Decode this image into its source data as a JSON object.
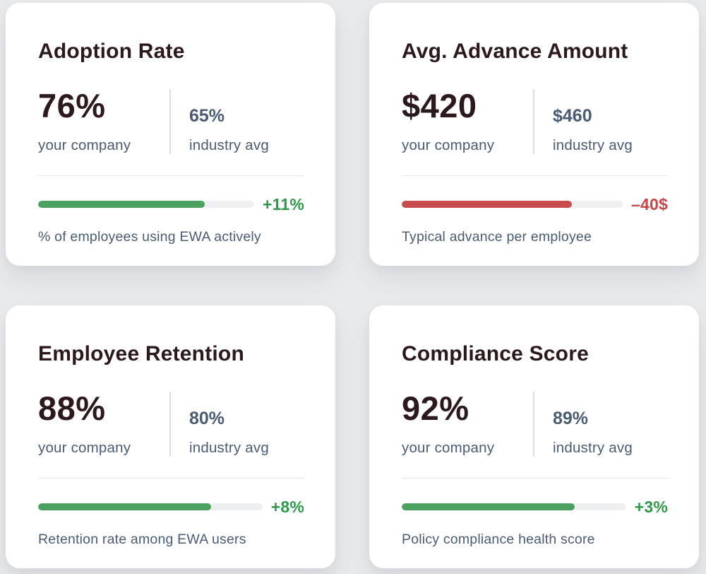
{
  "theme": {
    "page_bg": "#e9eaec",
    "card_bg": "#ffffff",
    "title_color": "#2b191c",
    "slate_color": "#4a5c74",
    "divider_color": "#d9dce2",
    "hrule_color": "#e5e7ea",
    "track_color": "#eff0f1",
    "positive_color": "#2e9a49",
    "positive_bar_color": "#4aa160",
    "negative_color": "#c84545",
    "negative_bar_color": "#c94b4b"
  },
  "cards": [
    {
      "title": "Adoption Rate",
      "company_value": "76%",
      "company_label": "your company",
      "industry_value": "65%",
      "industry_label": "industry avg",
      "bar_fill_pct": 77,
      "bar_color": "#4aa160",
      "delta": "+11%",
      "delta_color": "#2e9a49",
      "delta_sentiment": "positive",
      "caption": "% of employees using EWA actively"
    },
    {
      "title": "Avg. Advance Amount",
      "company_value": "$420",
      "company_label": "your company",
      "industry_value": "$460",
      "industry_label": "industry avg",
      "bar_fill_pct": 77,
      "bar_color": "#c94b4b",
      "delta": "–40$",
      "delta_color": "#c84545",
      "delta_sentiment": "negative",
      "caption": "Typical advance per employee"
    },
    {
      "title": "Employee Retention",
      "company_value": "88%",
      "company_label": "your company",
      "industry_value": "80%",
      "industry_label": "industry avg",
      "bar_fill_pct": 77,
      "bar_color": "#4aa160",
      "delta": "+8%",
      "delta_color": "#2e9a49",
      "delta_sentiment": "positive",
      "caption": "Retention rate among EWA users"
    },
    {
      "title": "Compliance Score",
      "company_value": "92%",
      "company_label": "your company",
      "industry_value": "89%",
      "industry_label": "industry avg",
      "bar_fill_pct": 77,
      "bar_color": "#4aa160",
      "delta": "+3%",
      "delta_color": "#2e9a49",
      "delta_sentiment": "positive",
      "caption": "Policy compliance health score"
    }
  ]
}
